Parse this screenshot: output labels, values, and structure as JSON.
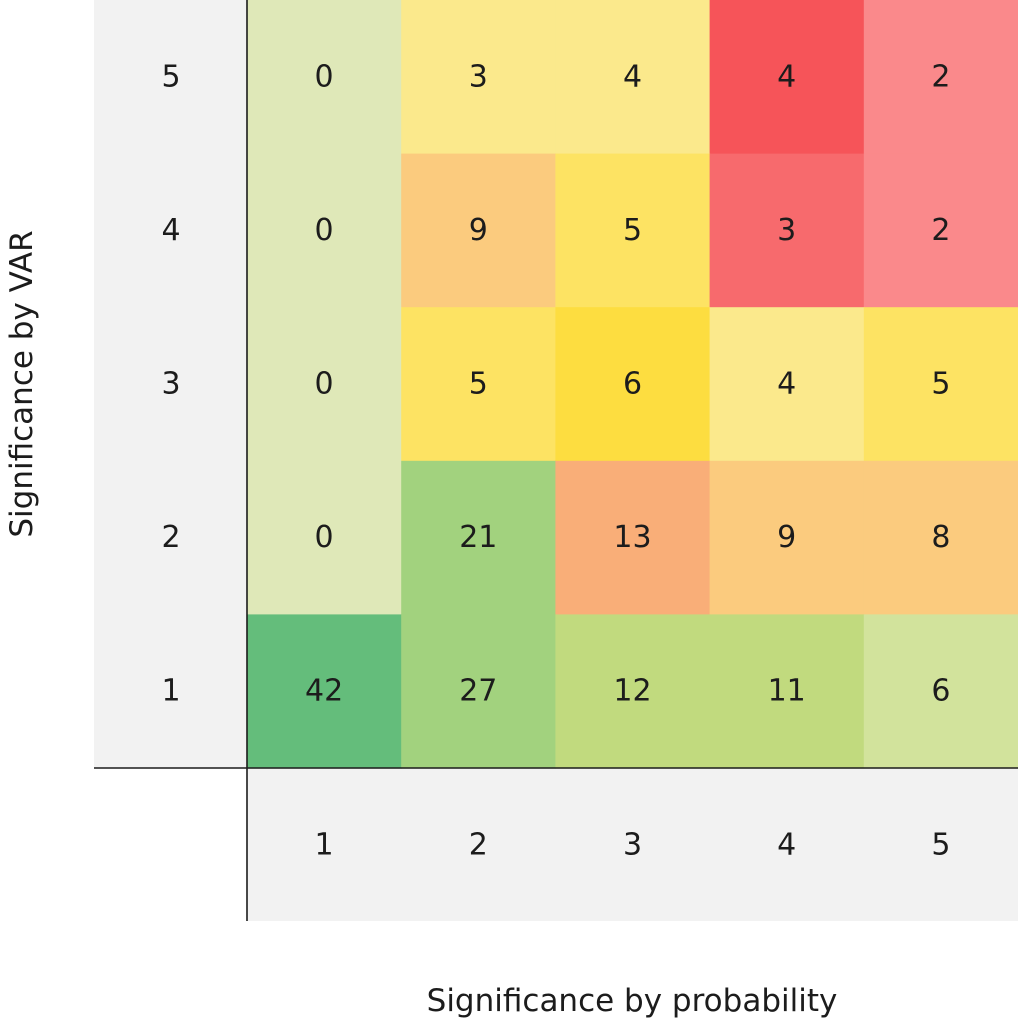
{
  "chart_data": {
    "type": "heatmap",
    "xlabel": "Significance by probability",
    "ylabel": "Significance by VAR",
    "x_categories": [
      "1",
      "2",
      "3",
      "4",
      "5"
    ],
    "y_categories": [
      "1",
      "2",
      "3",
      "4",
      "5"
    ],
    "grid": false,
    "legend": "none",
    "axis_panel_color": "#f2f2f2",
    "axis_line_color": "#1c1c1c",
    "rows": [
      {
        "y": "5",
        "values": [
          0,
          3,
          4,
          4,
          2
        ],
        "colors": [
          "#dfe8b8",
          "#fbe98c",
          "#fbe98c",
          "#f65459",
          "#fa898b"
        ]
      },
      {
        "y": "4",
        "values": [
          0,
          9,
          5,
          3,
          2
        ],
        "colors": [
          "#dfe8b8",
          "#fbcb7e",
          "#fde363",
          "#f76a6d",
          "#fa898b"
        ]
      },
      {
        "y": "3",
        "values": [
          0,
          5,
          6,
          4,
          5
        ],
        "colors": [
          "#dfe8b8",
          "#fde363",
          "#fddd40",
          "#fbe98c",
          "#fde363"
        ]
      },
      {
        "y": "2",
        "values": [
          0,
          21,
          13,
          9,
          8
        ],
        "colors": [
          "#dfe8b8",
          "#a2d27e",
          "#f9ae78",
          "#fbcb7e",
          "#fbcb7e"
        ]
      },
      {
        "y": "1",
        "values": [
          42,
          27,
          12,
          11,
          6
        ],
        "colors": [
          "#64bd7b",
          "#a2d27e",
          "#c1da7e",
          "#c1da7e",
          "#d2e39c"
        ]
      }
    ]
  }
}
